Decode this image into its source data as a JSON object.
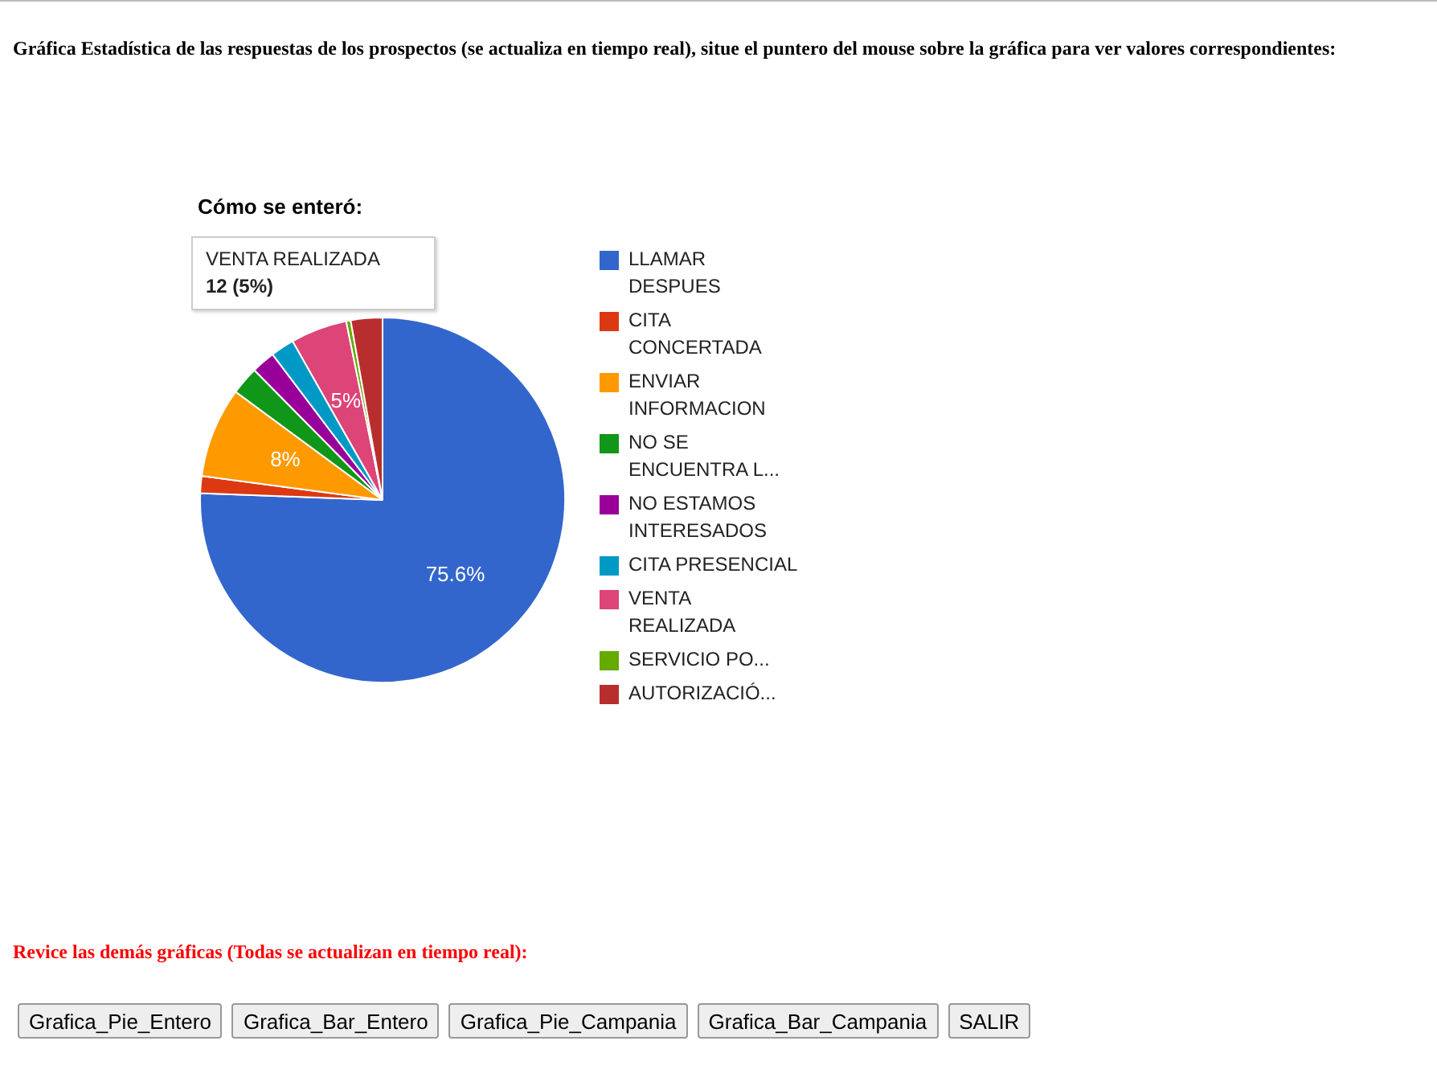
{
  "chart_data": {
    "type": "pie",
    "title": "Gráfica Estadística de las respuestas de los prospectos (se actualiza en tiempo real), situe el puntero del mouse sobre la gráfica para ver valores correspondientes:",
    "subtitle": "Cómo se enteró:",
    "categories": [
      "LLAMAR DESPUES",
      "CITA CONCERTADA",
      "ENVIAR INFORMACION",
      "NO SE ENCUENTRA L...",
      "NO ESTAMOS INTERESADOS",
      "CITA PRESENCIAL",
      "VENTA REALIZADA",
      "SERVICIO PO...",
      "AUTORIZACIÓ..."
    ],
    "values": [
      75.6,
      1.5,
      8,
      2.5,
      2.1,
      2.1,
      5,
      0.4,
      2.8
    ],
    "colors": [
      "#3366cc",
      "#dc3912",
      "#ff9900",
      "#109618",
      "#990099",
      "#0099c6",
      "#dd4477",
      "#66aa00",
      "#b82e2e"
    ],
    "value_labels": [
      "75.6%",
      null,
      "8%",
      null,
      null,
      null,
      "5%",
      null,
      null
    ],
    "legend": "right",
    "annotations": [
      "VENTA REALIZADA\n12 (5%)",
      "Revice las demás gráficas (Todas se actualizan en tiempo real):",
      "Grafica_Pie_Entero",
      "Grafica_Bar_Entero",
      "Grafica_Pie_Campania",
      "Grafica_Bar_Campania",
      "SALIR"
    ]
  }
}
